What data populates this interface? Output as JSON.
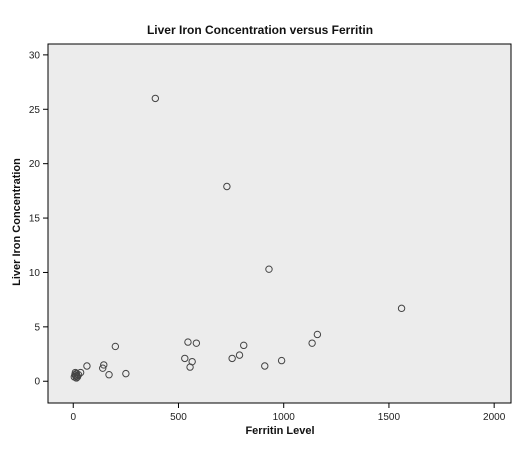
{
  "chart_data": {
    "type": "scatter",
    "title": "Liver Iron Concentration versus Ferritin",
    "xlabel": "Ferritin Level",
    "ylabel": "Liver Iron Concentration",
    "xlim": [
      -120,
      2080
    ],
    "ylim": [
      -2,
      31
    ],
    "xticks": [
      0,
      500,
      1000,
      1500,
      2000
    ],
    "yticks": [
      0,
      5,
      10,
      15,
      20,
      25,
      30
    ],
    "grid": false,
    "legend": "none",
    "marker": "open-circle",
    "plot_background": "#ececec",
    "page_background": "#ffffff",
    "series": [
      {
        "x": [
          5,
          8,
          10,
          12,
          15,
          15,
          18,
          20,
          25,
          35,
          65,
          140,
          145,
          170,
          200,
          250,
          390,
          530,
          545,
          555,
          565,
          585,
          730,
          755,
          790,
          810,
          910,
          930,
          990,
          1135,
          1160,
          1560
        ],
        "y": [
          0.4,
          0.6,
          0.8,
          0.5,
          0.3,
          0.7,
          0.5,
          0.4,
          0.6,
          0.8,
          1.4,
          1.2,
          1.5,
          0.6,
          3.2,
          0.7,
          26.0,
          2.1,
          3.6,
          1.3,
          1.8,
          3.5,
          17.9,
          2.1,
          2.4,
          3.3,
          1.4,
          10.3,
          1.9,
          3.5,
          4.3,
          6.7
        ]
      }
    ]
  }
}
